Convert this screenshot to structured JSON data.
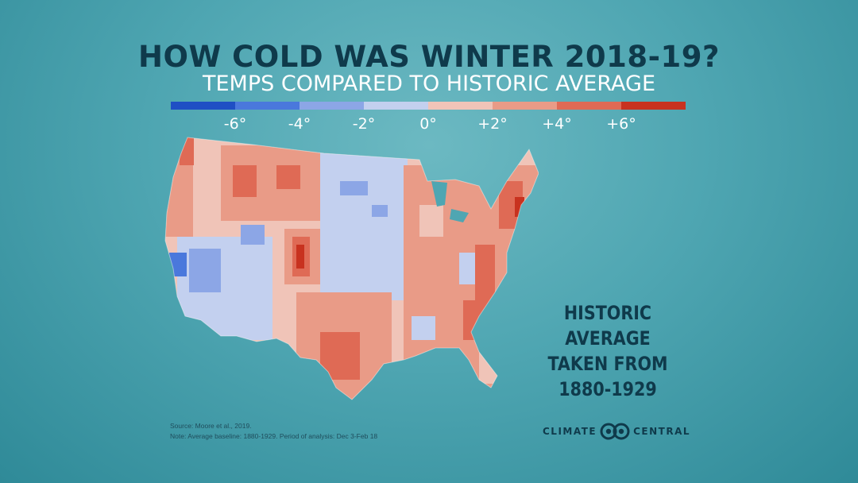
{
  "header": {
    "title": "HOW COLD WAS WINTER 2018-19?",
    "subtitle": "TEMPS COMPARED TO HISTORIC AVERAGE"
  },
  "legend": {
    "colors": [
      "#1f4fc4",
      "#4a78dc",
      "#8ca6e6",
      "#c3d0ef",
      "#f0c4b8",
      "#e99b87",
      "#df6a55",
      "#c8321f"
    ],
    "ticks": [
      "-6°",
      "-4°",
      "-2°",
      "0°",
      "+2°",
      "+4°",
      "+6°"
    ]
  },
  "map": {
    "region": "Contiguous United States (county level)",
    "palette": {
      "much_warmer": "#c8321f",
      "warmer": "#df6a55",
      "slightly_warmer": "#e99b87",
      "near_normal_warm": "#f0c4b8",
      "near_normal_cool": "#c3d0ef",
      "cooler": "#8ca6e6",
      "much_cooler": "#4a78dc"
    }
  },
  "note": {
    "line1": "HISTORIC AVERAGE",
    "line2": "TAKEN FROM",
    "line3": "1880-1929"
  },
  "footer": {
    "source": "Source: Moore et al., 2019.",
    "note": "Note: Average baseline: 1880-1929. Period of analysis: Dec 3-Feb 18"
  },
  "logo": {
    "left": "CLIMATE",
    "right": "CENTRAL"
  }
}
